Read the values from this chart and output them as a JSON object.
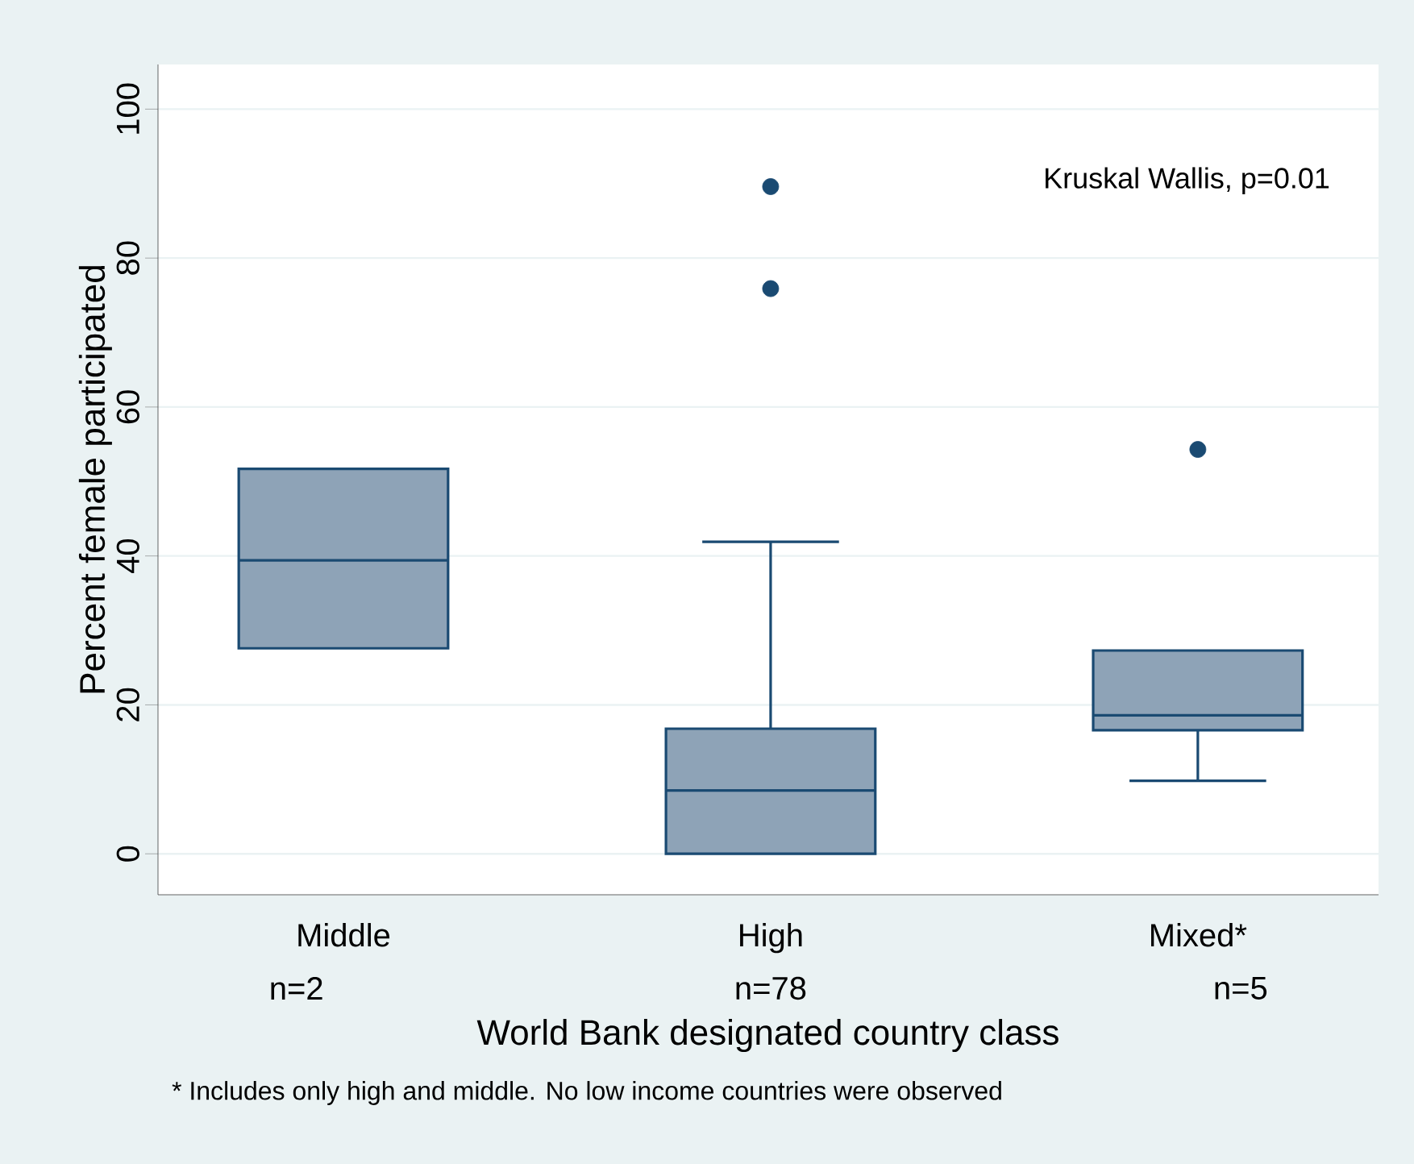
{
  "chart_data": {
    "type": "box",
    "ylabel": "Percent female participated",
    "xlabel": "World Bank designated country class",
    "categories": [
      "Middle",
      "High",
      "Mixed*"
    ],
    "boxes": [
      {
        "low": 27.6,
        "q1": 27.6,
        "median": 39.4,
        "q3": 51.7,
        "high": 51.7
      },
      {
        "low": 0,
        "q1": 0,
        "median": 8.5,
        "q3": 16.8,
        "high": 41.9,
        "outliers": [
          75.9,
          89.6
        ]
      },
      {
        "low": 9.8,
        "q1": 16.6,
        "median": 18.6,
        "q3": 27.3,
        "high": 27.3,
        "outliers": [
          54.3
        ]
      }
    ],
    "color": "#8ea3b7",
    "ylim": [
      -5.5,
      106
    ],
    "yticks": [
      0,
      20,
      40,
      60,
      80,
      100
    ],
    "grid": "y",
    "marker": "circle",
    "annotations": [
      "Kruskal Wallis, p=0.01",
      "n=2",
      "n=78",
      "n=5",
      "* Includes only high and middle. No low income countries were observed"
    ]
  }
}
